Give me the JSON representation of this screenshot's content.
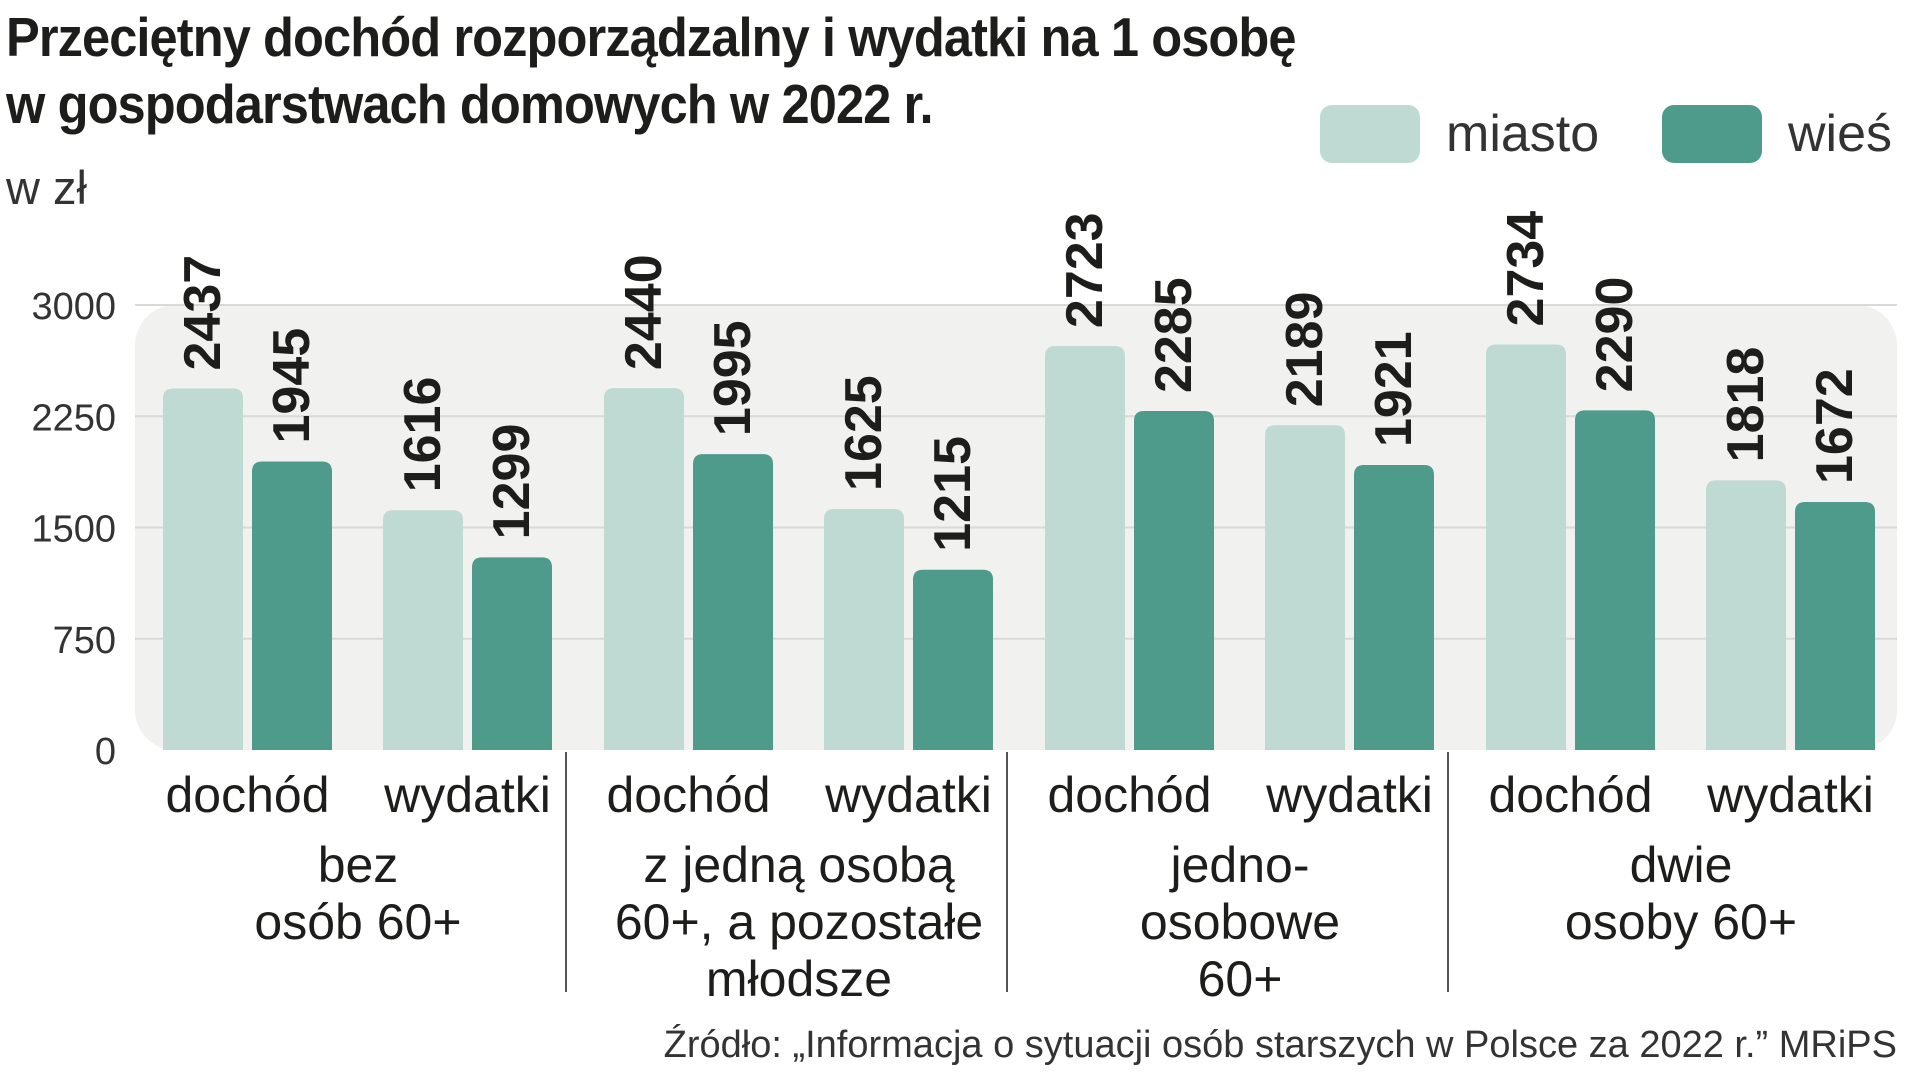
{
  "title": {
    "line1": "Przeciętny dochód rozporządzalny i wydatki na 1 osobę",
    "line2": "w gospodarstwach domowych w 2022 r."
  },
  "unit_label": "w zł",
  "legend": [
    {
      "label": "miasto",
      "color": "#bfdad2"
    },
    {
      "label": "wieś",
      "color": "#4e9a8b"
    }
  ],
  "source": "Źródło: „Informacja o sytuacji osób starszych w Polsce za 2022 r.” MRiPS",
  "chart_data": {
    "type": "bar",
    "ylim": [
      0,
      3000
    ],
    "yticks": [
      "0",
      "750",
      "1500",
      "2250",
      "3000"
    ],
    "groups": [
      {
        "label": [
          "bez",
          "osób 60+"
        ],
        "categories": [
          {
            "label": "dochód",
            "values": [
              2437,
              1945
            ]
          },
          {
            "label": "wydatki",
            "values": [
              1616,
              1299
            ]
          }
        ]
      },
      {
        "label": [
          "z jedną osobą",
          "60+, a pozostałe",
          "młodsze"
        ],
        "categories": [
          {
            "label": "dochód",
            "values": [
              2440,
              1995
            ]
          },
          {
            "label": "wydatki",
            "values": [
              1625,
              1215
            ]
          }
        ]
      },
      {
        "label": [
          "jedno-",
          "osobowe",
          "60+"
        ],
        "categories": [
          {
            "label": "dochód",
            "values": [
              2723,
              2285
            ]
          },
          {
            "label": "wydatki",
            "values": [
              2189,
              1921
            ]
          }
        ]
      },
      {
        "label": [
          "dwie",
          "osoby 60+"
        ],
        "categories": [
          {
            "label": "dochód",
            "values": [
              2734,
              2290
            ]
          },
          {
            "label": "wydatki",
            "values": [
              1818,
              1672
            ]
          }
        ]
      }
    ],
    "series": [
      {
        "name": "miasto"
      },
      {
        "name": "wieś"
      }
    ],
    "colors": {
      "plot_background": "#f1f1f0",
      "grid": "#d9d9d9",
      "divider": "#555555"
    }
  }
}
